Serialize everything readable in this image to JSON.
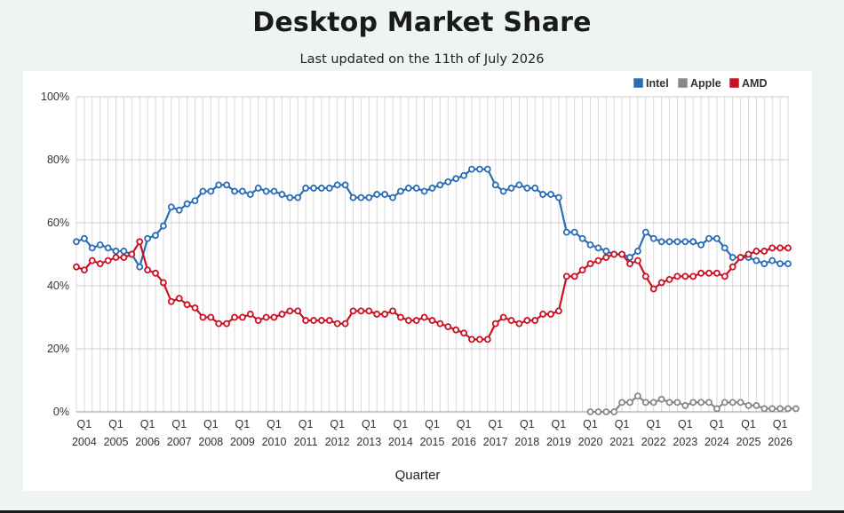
{
  "page": {
    "title": "Desktop Market Share",
    "subtitle": "Last updated on the 11th of July 2026"
  },
  "chart_data": {
    "type": "line",
    "xlabel": "Quarter",
    "ylabel": "",
    "ylim": [
      0,
      100
    ],
    "yticks": [
      "0%",
      "20%",
      "40%",
      "60%",
      "80%",
      "100%"
    ],
    "grid": true,
    "legend_position": "top-right",
    "start_year": 2003,
    "start_quarter": 4,
    "year_labels": [
      "2004",
      "2005",
      "2006",
      "2007",
      "2008",
      "2009",
      "2010",
      "2011",
      "2012",
      "2013",
      "2014",
      "2015",
      "2016",
      "2017",
      "2018",
      "2019",
      "2020",
      "2021",
      "2022",
      "2023",
      "2024",
      "2025",
      "2026"
    ],
    "quarter_label": "Q1",
    "series": [
      {
        "name": "Intel",
        "color": "#2a6db5",
        "values": [
          54,
          55,
          52,
          53,
          52,
          51,
          51,
          50,
          46,
          55,
          56,
          59,
          65,
          64,
          66,
          67,
          70,
          70,
          72,
          72,
          70,
          70,
          69,
          71,
          70,
          70,
          69,
          68,
          68,
          71,
          71,
          71,
          71,
          72,
          72,
          68,
          68,
          68,
          69,
          69,
          68,
          70,
          71,
          71,
          70,
          71,
          72,
          73,
          74,
          75,
          77,
          77,
          77,
          72,
          70,
          71,
          72,
          71,
          71,
          69,
          69,
          68,
          57,
          57,
          55,
          53,
          52,
          51,
          50,
          50,
          49,
          51,
          57,
          55,
          54,
          54,
          54,
          54,
          54,
          53,
          55,
          55,
          52,
          49,
          49,
          49,
          48,
          47,
          48,
          47,
          47
        ]
      },
      {
        "name": "Apple",
        "color": "#888888",
        "start_index": 65,
        "values": [
          0,
          0,
          0,
          0,
          3,
          3,
          5,
          3,
          3,
          4,
          3,
          3,
          2,
          3,
          3,
          3,
          1,
          3,
          3,
          3,
          2,
          2,
          1,
          1,
          1,
          1,
          1
        ]
      },
      {
        "name": "AMD",
        "color": "#cc1122",
        "values": [
          46,
          45,
          48,
          47,
          48,
          49,
          49,
          50,
          54,
          45,
          44,
          41,
          35,
          36,
          34,
          33,
          30,
          30,
          28,
          28,
          30,
          30,
          31,
          29,
          30,
          30,
          31,
          32,
          32,
          29,
          29,
          29,
          29,
          28,
          28,
          32,
          32,
          32,
          31,
          31,
          32,
          30,
          29,
          29,
          30,
          29,
          28,
          27,
          26,
          25,
          23,
          23,
          23,
          28,
          30,
          29,
          28,
          29,
          29,
          31,
          31,
          32,
          43,
          43,
          45,
          47,
          48,
          49,
          50,
          50,
          47,
          48,
          43,
          39,
          41,
          42,
          43,
          43,
          43,
          44,
          44,
          44,
          43,
          46,
          49,
          50,
          51,
          51,
          52,
          52,
          52
        ]
      }
    ]
  }
}
